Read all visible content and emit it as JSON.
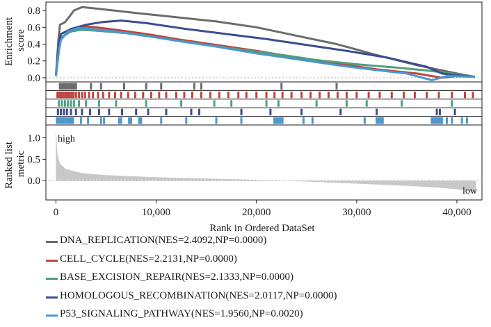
{
  "chart_data": {
    "type": "line",
    "title": "",
    "xlabel": "Rank in Ordered DataSet",
    "xlim": [
      -1000,
      42500
    ],
    "x_ticks": [
      0,
      10000,
      20000,
      30000,
      40000
    ],
    "x_tick_labels": [
      "0",
      "10,000",
      "20,000",
      "30,000",
      "40,000"
    ],
    "enrichment_panel": {
      "ylabel_lines": [
        "Enrichment",
        "score"
      ],
      "ylim": [
        -0.05,
        0.9
      ],
      "y_ticks": [
        0.0,
        0.2,
        0.4,
        0.6,
        0.8
      ],
      "y_tick_labels": [
        "0.0",
        "0.2",
        "0.4",
        "0.6",
        "0.8"
      ],
      "zero_line": "dashed"
    },
    "ranked_panel": {
      "ylabel_lines": [
        "Ranked list",
        "metric"
      ],
      "ylim": [
        -0.45,
        1.3
      ],
      "y_ticks": [
        0.0,
        0.5,
        1.0
      ],
      "y_tick_labels": [
        "0.0",
        "0.5",
        "1.0"
      ],
      "high_label": "high",
      "low_label": "low",
      "fill_color": "#c8c8c8",
      "metric_curve": [
        [
          0,
          1.2
        ],
        [
          150,
          0.62
        ],
        [
          400,
          0.4
        ],
        [
          1000,
          0.27
        ],
        [
          2500,
          0.18
        ],
        [
          5000,
          0.13
        ],
        [
          10000,
          0.08
        ],
        [
          15000,
          0.05
        ],
        [
          20000,
          0.02
        ],
        [
          25000,
          -0.02
        ],
        [
          30000,
          -0.07
        ],
        [
          35000,
          -0.12
        ],
        [
          38000,
          -0.16
        ],
        [
          40000,
          -0.2
        ],
        [
          41500,
          -0.25
        ],
        [
          41900,
          -0.28
        ]
      ]
    },
    "series": [
      {
        "name": "DNA_REPLICATION",
        "stats": "(NES=2.4092,NP=0.0000)",
        "color": "#6b6b6b",
        "points": [
          [
            0,
            0.02
          ],
          [
            250,
            0.45
          ],
          [
            400,
            0.63
          ],
          [
            900,
            0.66
          ],
          [
            1300,
            0.72
          ],
          [
            1800,
            0.8
          ],
          [
            2600,
            0.84
          ],
          [
            3500,
            0.83
          ],
          [
            5000,
            0.81
          ],
          [
            8000,
            0.77
          ],
          [
            12000,
            0.72
          ],
          [
            16000,
            0.67
          ],
          [
            20000,
            0.6
          ],
          [
            24000,
            0.5
          ],
          [
            28000,
            0.4
          ],
          [
            32000,
            0.27
          ],
          [
            36000,
            0.15
          ],
          [
            40000,
            0.05
          ],
          [
            41800,
            0.01
          ]
        ],
        "hits": [
          400,
          600,
          800,
          1000,
          1200,
          1400,
          1600,
          1800,
          2000,
          3500,
          4500,
          6800,
          9000,
          10500,
          13800,
          14500,
          22500,
          28000
        ]
      },
      {
        "name": "CELL_CYCLE",
        "stats": "(NES=2.2131,NP=0.0000)",
        "color": "#c0443d",
        "points": [
          [
            0,
            0.02
          ],
          [
            300,
            0.35
          ],
          [
            500,
            0.47
          ],
          [
            1200,
            0.54
          ],
          [
            2000,
            0.58
          ],
          [
            3000,
            0.61
          ],
          [
            4000,
            0.6
          ],
          [
            6000,
            0.57
          ],
          [
            9000,
            0.52
          ],
          [
            12000,
            0.46
          ],
          [
            16000,
            0.39
          ],
          [
            20000,
            0.32
          ],
          [
            24000,
            0.24
          ],
          [
            28000,
            0.17
          ],
          [
            32000,
            0.1
          ],
          [
            36000,
            0.05
          ],
          [
            38500,
            0.0
          ],
          [
            40000,
            0.02
          ],
          [
            41800,
            0.01
          ]
        ],
        "hits": [
          150,
          350,
          550,
          750,
          950,
          1150,
          1350,
          1550,
          1750,
          2000,
          2300,
          2600,
          2900,
          3300,
          3700,
          4200,
          4700,
          5300,
          5900,
          6500,
          7200,
          7900,
          8700,
          9500,
          10300,
          11000,
          12000,
          12800,
          13600,
          14500,
          15400,
          16300,
          17200,
          18200,
          19000,
          20000,
          21000,
          21800,
          22600,
          23500,
          24500,
          25400,
          26300,
          27200,
          28100,
          29000,
          30000,
          31200,
          32300,
          33500,
          34700,
          35800,
          37000,
          38200,
          39500,
          40800,
          41600
        ]
      },
      {
        "name": "BASE_EXCISION_REPAIR",
        "stats": "(NES=2.1333,NP=0.0000)",
        "color": "#4f9e7f",
        "points": [
          [
            0,
            0.02
          ],
          [
            300,
            0.38
          ],
          [
            500,
            0.48
          ],
          [
            1500,
            0.55
          ],
          [
            2500,
            0.57
          ],
          [
            4000,
            0.56
          ],
          [
            7000,
            0.53
          ],
          [
            10000,
            0.48
          ],
          [
            14000,
            0.41
          ],
          [
            18000,
            0.34
          ],
          [
            22000,
            0.28
          ],
          [
            26000,
            0.21
          ],
          [
            30000,
            0.16
          ],
          [
            34000,
            0.12
          ],
          [
            37500,
            0.08
          ],
          [
            40000,
            0.04
          ],
          [
            41800,
            0.01
          ]
        ],
        "hits": [
          300,
          600,
          900,
          1200,
          1500,
          1800,
          2300,
          3000,
          4300,
          6000,
          9000,
          12500,
          15800,
          17500,
          21000,
          22200,
          26000,
          29000,
          31000,
          34500,
          39500
        ]
      },
      {
        "name": "HOMOLOGOUS_RECOMBINATION",
        "stats": "(NES=2.0117,NP=0.0000)",
        "color": "#3c4d8d",
        "points": [
          [
            0,
            0.02
          ],
          [
            300,
            0.42
          ],
          [
            500,
            0.52
          ],
          [
            1500,
            0.58
          ],
          [
            3000,
            0.63
          ],
          [
            4500,
            0.66
          ],
          [
            6500,
            0.68
          ],
          [
            9000,
            0.65
          ],
          [
            13000,
            0.58
          ],
          [
            17000,
            0.52
          ],
          [
            21000,
            0.46
          ],
          [
            25000,
            0.39
          ],
          [
            29000,
            0.32
          ],
          [
            33000,
            0.24
          ],
          [
            37000,
            0.13
          ],
          [
            38500,
            0.05
          ],
          [
            40000,
            0.03
          ],
          [
            41800,
            0.01
          ]
        ],
        "hits": [
          200,
          500,
          800,
          1100,
          1500,
          2000,
          2600,
          3400,
          4300,
          5300,
          6600,
          8000,
          9200,
          11000,
          13500,
          14300,
          18500,
          21400,
          24500,
          28400,
          32000,
          38000,
          38300,
          39800
        ]
      },
      {
        "name": "P53_SIGNALING_PATHWAY",
        "stats": "(NES=1.9560,NP=0.0020)",
        "color": "#4a98cf",
        "points": [
          [
            0,
            0.02
          ],
          [
            300,
            0.32
          ],
          [
            500,
            0.45
          ],
          [
            1200,
            0.55
          ],
          [
            2200,
            0.59
          ],
          [
            3500,
            0.58
          ],
          [
            6000,
            0.55
          ],
          [
            9000,
            0.5
          ],
          [
            12000,
            0.44
          ],
          [
            16000,
            0.37
          ],
          [
            20000,
            0.29
          ],
          [
            24000,
            0.22
          ],
          [
            28000,
            0.15
          ],
          [
            32000,
            0.09
          ],
          [
            35000,
            0.05
          ],
          [
            37500,
            -0.03
          ],
          [
            39000,
            0.02
          ],
          [
            41800,
            0.01
          ]
        ],
        "hits": [
          100,
          300,
          500,
          700,
          900,
          1100,
          1300,
          1500,
          1700,
          2500,
          3200,
          4500,
          4800,
          6300,
          6500,
          7300,
          7500,
          8300,
          8500,
          10500,
          13000,
          16000,
          18500,
          21800,
          22000,
          22200,
          22400,
          22600,
          24700,
          25600,
          30800,
          32000,
          32200,
          32400,
          32600,
          37500,
          37700,
          37900,
          38100,
          38300,
          38500,
          39000,
          39500,
          40500,
          41000
        ]
      }
    ]
  },
  "legend": {
    "items": [
      {
        "label": "DNA_REPLICATION(NES=2.4092,NP=0.0000)",
        "color": "#6b6b6b"
      },
      {
        "label": "CELL_CYCLE(NES=2.2131,NP=0.0000)",
        "color": "#c0443d"
      },
      {
        "label": "BASE_EXCISION_REPAIR(NES=2.1333,NP=0.0000)",
        "color": "#4f9e7f"
      },
      {
        "label": "HOMOLOGOUS_RECOMBINATION(NES=2.0117,NP=0.0000)",
        "color": "#3c4d8d"
      },
      {
        "label": "P53_SIGNALING_PATHWAY(NES=1.9560,NP=0.0020)",
        "color": "#4a98cf"
      }
    ]
  }
}
